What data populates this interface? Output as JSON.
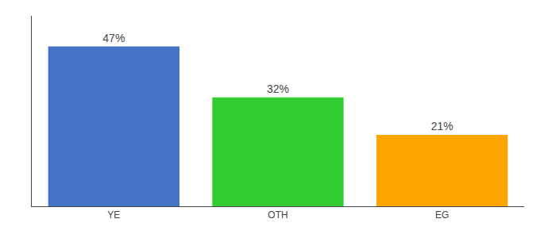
{
  "chart_data": {
    "type": "bar",
    "categories": [
      "YE",
      "OTH",
      "EG"
    ],
    "values": [
      47,
      32,
      21
    ],
    "value_labels": [
      "47%",
      "32%",
      "21%"
    ],
    "data_labels": true,
    "colors": [
      "#4472C4",
      "#33CC33",
      "#FFA500"
    ],
    "ylim": [
      0,
      56
    ],
    "tick_labels": "x",
    "grid": false
  }
}
